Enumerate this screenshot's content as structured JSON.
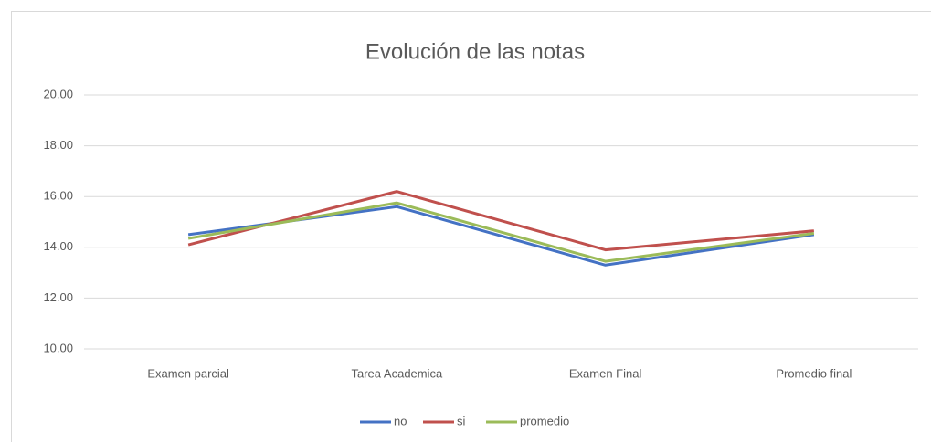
{
  "chart_data": {
    "type": "line",
    "title": "Evolución de las notas",
    "categories": [
      "Examen parcial",
      "Tarea Academica",
      "Examen Final",
      "Promedio final"
    ],
    "series": [
      {
        "name": "no",
        "color": "#4472c4",
        "values": [
          14.5,
          15.6,
          13.3,
          14.5
        ]
      },
      {
        "name": "si",
        "color": "#c0504d",
        "values": [
          14.1,
          16.2,
          13.9,
          14.65
        ]
      },
      {
        "name": "promedio",
        "color": "#9bbb59",
        "values": [
          14.35,
          15.75,
          13.45,
          14.55
        ]
      }
    ],
    "ylim": [
      10,
      20
    ],
    "yticks": [
      {
        "value": 10,
        "label": "10.00"
      },
      {
        "value": 12,
        "label": "12.00"
      },
      {
        "value": 14,
        "label": "14.00"
      },
      {
        "value": 16,
        "label": "16.00"
      },
      {
        "value": 18,
        "label": "18.00"
      },
      {
        "value": 20,
        "label": "20.00"
      }
    ],
    "grid": true,
    "legend": "bottom"
  }
}
